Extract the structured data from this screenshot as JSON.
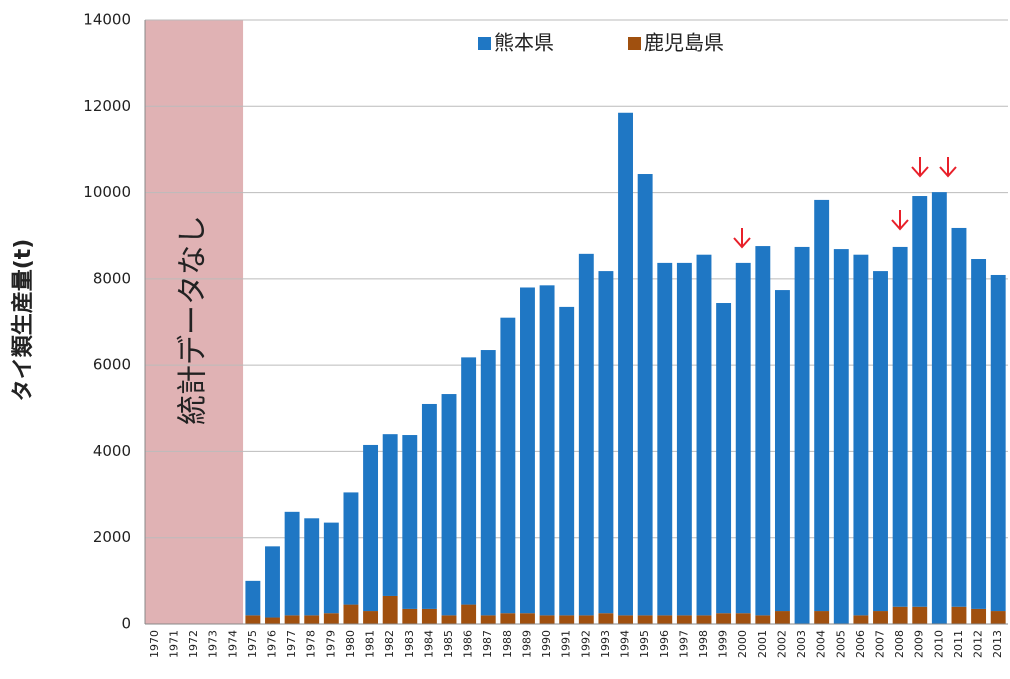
{
  "chart_data": {
    "type": "stacked_bar",
    "y_label": "タイ類生産量(t)",
    "annotation": "統計データなし",
    "categories": [
      "1970",
      "1971",
      "1972",
      "1973",
      "1974",
      "1975",
      "1976",
      "1977",
      "1978",
      "1979",
      "1980",
      "1981",
      "1982",
      "1983",
      "1984",
      "1985",
      "1986",
      "1987",
      "1988",
      "1989",
      "1990",
      "1991",
      "1992",
      "1993",
      "1994",
      "1995",
      "1996",
      "1997",
      "1998",
      "1999",
      "2000",
      "2001",
      "2002",
      "2003",
      "2004",
      "2005",
      "2006",
      "2007",
      "2008",
      "2009",
      "2010",
      "2011",
      "2012",
      "2013"
    ],
    "series": [
      {
        "name": "熊本県",
        "color": "#1f77c4",
        "values": [
          null,
          null,
          null,
          null,
          null,
          800,
          1650,
          2400,
          2250,
          2100,
          2600,
          3850,
          3750,
          4030,
          4750,
          5130,
          5730,
          6150,
          6850,
          7550,
          7650,
          7150,
          8380,
          7930,
          11650,
          10230,
          8170,
          8170,
          8360,
          7190,
          8120,
          8560,
          7440,
          8740,
          9530,
          8690,
          8360,
          7880,
          8340,
          9520,
          10010,
          8780,
          8110,
          7790
        ]
      },
      {
        "name": "鹿児島県",
        "color": "#a0500f",
        "values": [
          null,
          null,
          null,
          null,
          null,
          200,
          150,
          200,
          200,
          250,
          450,
          300,
          650,
          350,
          350,
          200,
          450,
          200,
          250,
          250,
          200,
          200,
          200,
          250,
          200,
          200,
          200,
          200,
          200,
          250,
          250,
          200,
          300,
          0,
          300,
          0,
          200,
          300,
          400,
          400,
          0,
          400,
          350,
          300
        ]
      }
    ],
    "ylim": [
      0,
      14000
    ],
    "yticks": [
      0,
      2000,
      4000,
      6000,
      8000,
      10000,
      12000,
      14000
    ],
    "grid": true
  }
}
